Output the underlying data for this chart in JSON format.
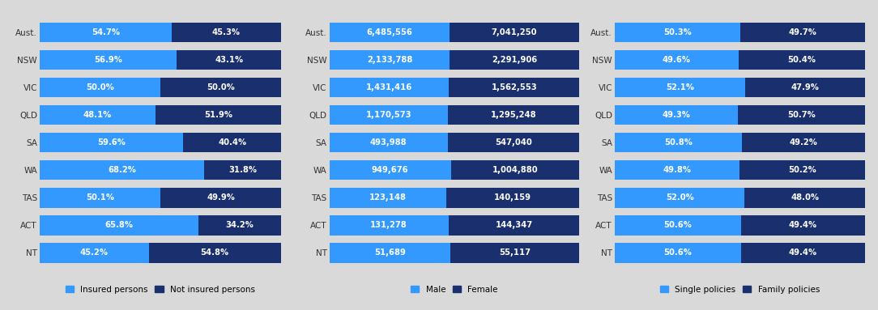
{
  "categories": [
    "Aust.",
    "NSW",
    "VIC",
    "QLD",
    "SA",
    "WA",
    "TAS",
    "ACT",
    "NT"
  ],
  "chart1": {
    "insured": [
      54.7,
      56.9,
      50.0,
      48.1,
      59.6,
      68.2,
      50.1,
      65.8,
      45.2
    ],
    "not_insured": [
      45.3,
      43.1,
      50.0,
      51.9,
      40.4,
      31.8,
      49.9,
      34.2,
      54.8
    ],
    "labels_insured": [
      "54.7%",
      "56.9%",
      "50.0%",
      "48.1%",
      "59.6%",
      "68.2%",
      "50.1%",
      "65.8%",
      "45.2%"
    ],
    "labels_not_insured": [
      "45.3%",
      "43.1%",
      "50.0%",
      "51.9%",
      "40.4%",
      "31.8%",
      "49.9%",
      "34.2%",
      "54.8%"
    ],
    "legend1": "Insured persons",
    "legend2": "Not insured persons"
  },
  "chart2": {
    "male": [
      6485556,
      2133788,
      1431416,
      1170573,
      493988,
      949676,
      123148,
      131278,
      51689
    ],
    "female": [
      7041250,
      2291906,
      1562553,
      1295248,
      547040,
      1004880,
      140159,
      144347,
      55117
    ],
    "labels_male": [
      "6,485,556",
      "2,133,788",
      "1,431,416",
      "1,170,573",
      "493,988",
      "949,676",
      "123,148",
      "131,278",
      "51,689"
    ],
    "labels_female": [
      "7,041,250",
      "2,291,906",
      "1,562,553",
      "1,295,248",
      "547,040",
      "1,004,880",
      "140,159",
      "144,347",
      "55,117"
    ],
    "legend1": "Male",
    "legend2": "Female"
  },
  "chart3": {
    "single": [
      50.3,
      49.6,
      52.1,
      49.3,
      50.8,
      49.8,
      52.0,
      50.6,
      50.6
    ],
    "family": [
      49.7,
      50.4,
      47.9,
      50.7,
      49.2,
      50.2,
      48.0,
      49.4,
      49.4
    ],
    "labels_single": [
      "50.3%",
      "49.6%",
      "52.1%",
      "49.3%",
      "50.8%",
      "49.8%",
      "52.0%",
      "50.6%",
      "50.6%"
    ],
    "labels_family": [
      "49.7%",
      "50.4%",
      "47.9%",
      "50.7%",
      "49.2%",
      "50.2%",
      "48.0%",
      "49.4%",
      "49.4%"
    ],
    "legend1": "Single policies",
    "legend2": "Family policies"
  },
  "color_light_blue": "#3399FF",
  "color_dark_blue": "#1a2f6e",
  "bg_color": "#D9D9D9",
  "bar_height": 0.72,
  "label_fontsize": 7.2,
  "tick_fontsize": 7.5,
  "legend_fontsize": 7.5
}
